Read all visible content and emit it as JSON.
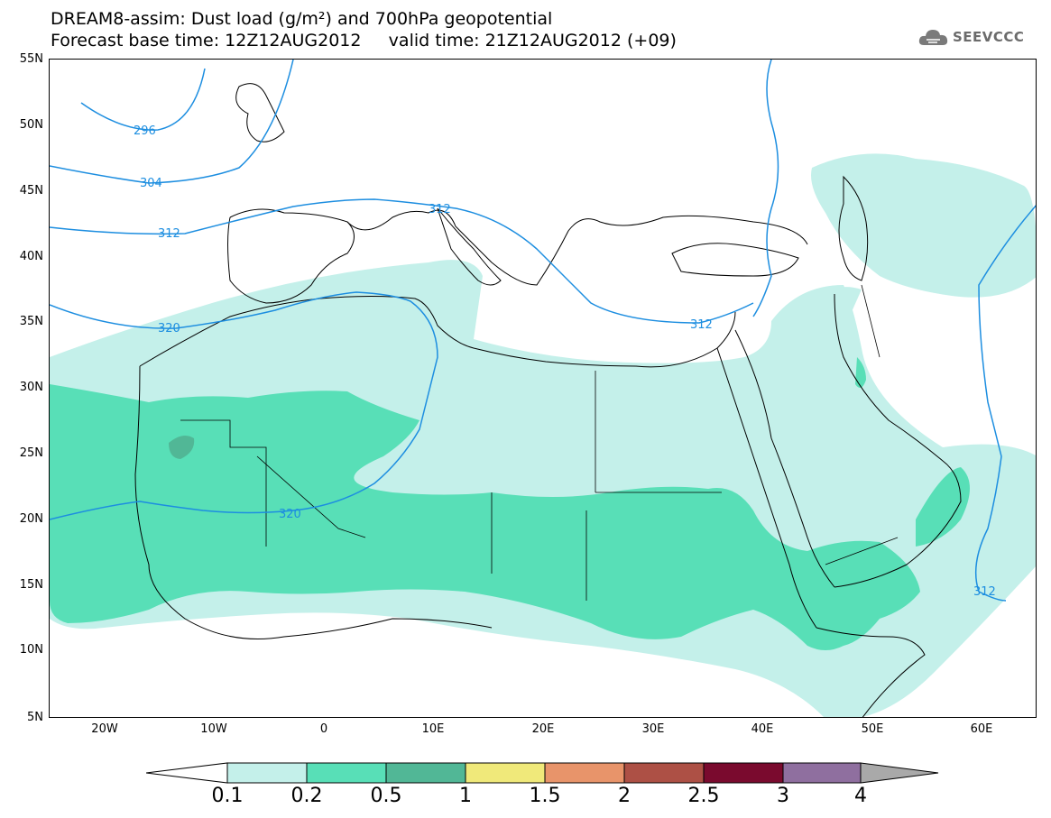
{
  "title": {
    "line1": "DREAM8-assim: Dust load (g/m²) and 700hPa geopotential",
    "line2": "Forecast base time: 12Z12AUG2012     valid time: 21Z12AUG2012 (+09)"
  },
  "logo": {
    "text": "SEEVCCC",
    "icon": "cloud-logo-icon"
  },
  "map": {
    "lon_range": [
      -25,
      65
    ],
    "lat_range": [
      5,
      55
    ],
    "lat_ticks": [
      "55N",
      "50N",
      "45N",
      "40N",
      "35N",
      "30N",
      "25N",
      "20N",
      "15N",
      "10N",
      "5N"
    ],
    "lon_ticks": [
      "20W",
      "10W",
      "0",
      "10E",
      "20E",
      "30E",
      "40E",
      "50E",
      "60E"
    ],
    "contour_labels": [
      "296",
      "304",
      "312",
      "320",
      "312",
      "312",
      "320",
      "312"
    ],
    "contour_color": "#1d8ee0",
    "dust_colors": {
      "light": "#c4f0ea",
      "medium": "#58dfb7",
      "dark": "#51b796"
    }
  },
  "colorbar": {
    "labels": [
      "0.1",
      "0.2",
      "0.5",
      "1",
      "1.5",
      "2",
      "2.5",
      "3",
      "4"
    ],
    "colors": [
      "#c4f0ea",
      "#58dfb7",
      "#51b796",
      "#f0e97a",
      "#e8946a",
      "#ad5045",
      "#7a0a2e",
      "#8f6f9f"
    ],
    "low_color": "#ffffff",
    "high_color": "#a9a9a9"
  }
}
